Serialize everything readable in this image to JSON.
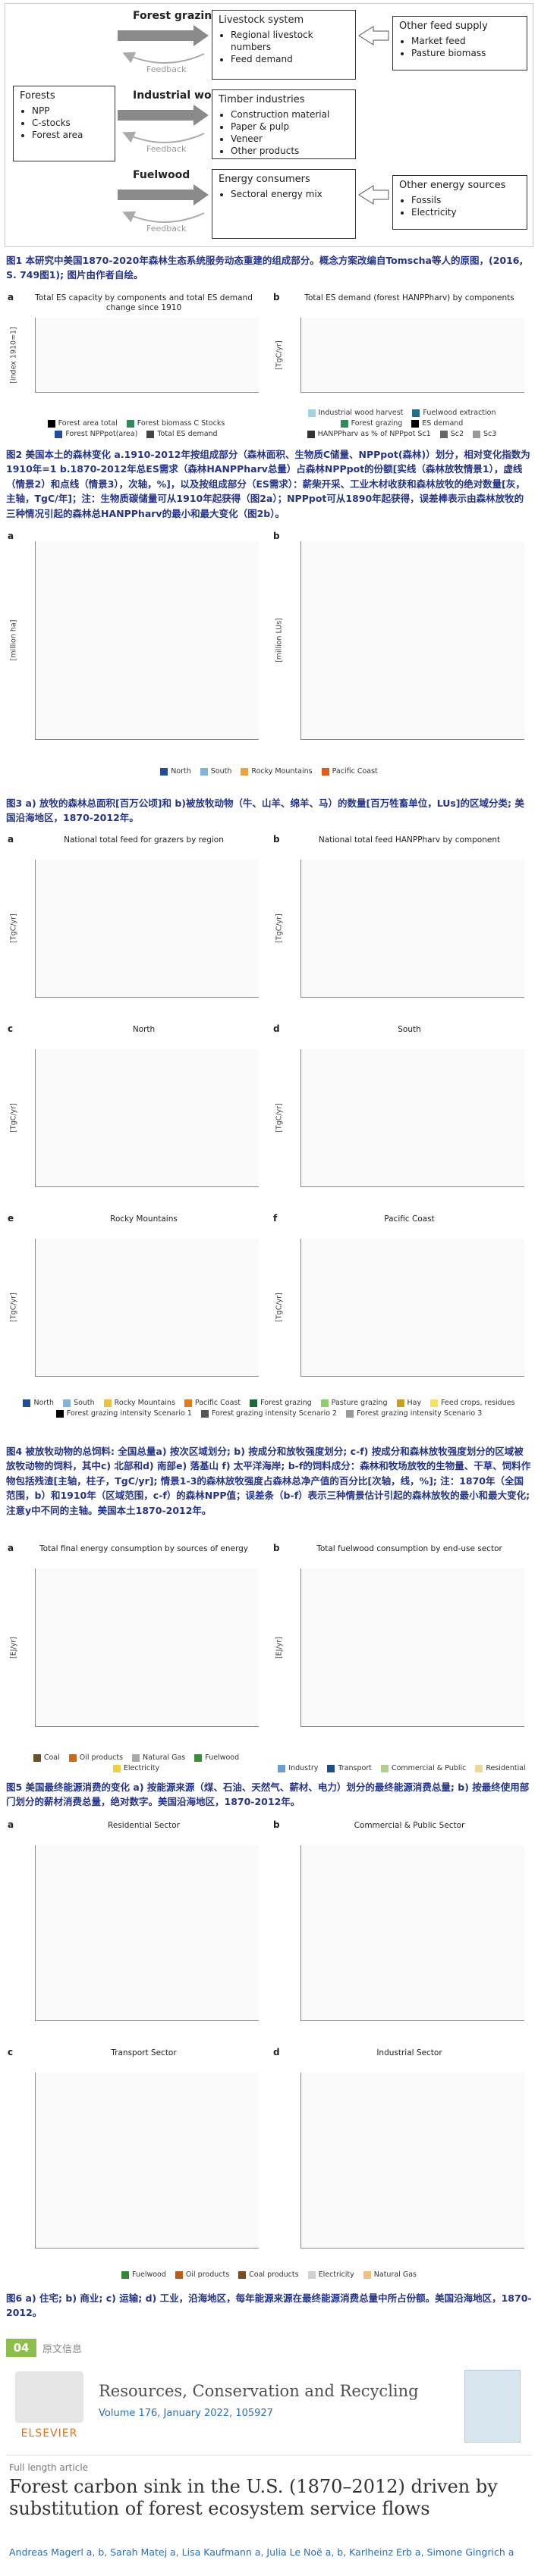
{
  "figure1": {
    "forests": {
      "title": "Forests",
      "items": [
        "NPP",
        "C-stocks",
        "Forest area"
      ]
    },
    "flows": [
      {
        "service": "Forest grazing",
        "feedback": "Feedback",
        "consumer": {
          "title": "Livestock system",
          "items": [
            "Regional livestock numbers",
            "Feed demand"
          ]
        },
        "supply": {
          "title": "Other feed supply",
          "items": [
            "Market feed",
            "Pasture biomass"
          ]
        }
      },
      {
        "service": "Industrial wood",
        "feedback": "Feedback",
        "consumer": {
          "title": "Timber industries",
          "items": [
            "Construction material",
            "Paper & pulp",
            "Veneer",
            "Other products"
          ]
        }
      },
      {
        "service": "Fuelwood",
        "feedback": "Feedback",
        "consumer": {
          "title": "Energy consumers",
          "items": [
            "Sectoral energy mix"
          ]
        },
        "supply": {
          "title": "Other energy sources",
          "items": [
            "Fossils",
            "Electricity"
          ]
        }
      }
    ],
    "caption": "图1 本研究中美国1870-2020年森林生态系统服务动态重建的组成部分。概念方案改编自Tomscha等人的原图，(2016, S. 749图1); 图片由作者自绘。"
  },
  "figures": [
    {
      "panels": [
        {
          "letter": "a",
          "title": "Total ES capacity by components and total ES demand change since 1910",
          "ylabel": "[index 1910=1]",
          "legend": [
            {
              "name": "Forest area total",
              "color": "#000000"
            },
            {
              "name": "Forest biomass C Stocks",
              "color": "#2e8b57"
            },
            {
              "name": "Forest NPPpot(area)",
              "color": "#1f4e9c"
            },
            {
              "name": "Total ES demand",
              "color": "#444444"
            }
          ]
        },
        {
          "letter": "b",
          "title": "Total ES demand (forest HANPPharv) by components",
          "ylabel": "[TgC/yr]",
          "legend": [
            {
              "name": "Industrial wood harvest",
              "color": "#9fd4e0"
            },
            {
              "name": "Fuelwood extraction",
              "color": "#1f6f8b"
            },
            {
              "name": "Forest grazing",
              "color": "#2e8b57"
            },
            {
              "name": "ES demand",
              "color": "#000000"
            },
            {
              "name": "HANPPharv as % of NPPpot Sc1",
              "color": "#333333"
            },
            {
              "name": "Sc2",
              "color": "#666666"
            },
            {
              "name": "Sc3",
              "color": "#999999"
            }
          ]
        }
      ],
      "caption": "图2 美国本土的森林变化 a.1910-2012年按组成部分（森林面积、生物质C储量、NPPpot(森林)）划分，相对变化指数为1910年=1 b.1870-2012年总ES需求（森林HANPPharv总量）占森林NPPpot的份额[实线（森林放牧情景1），虚线（情景2）和点线（情景3），次轴，%]，以及按组成部分（ES需求）：薪柴开采、工业木材收获和森林放牧的绝对数量[灰，主轴，TgC/年]；注：生物质碳储量可从1910年起获得（图2a）；NPPpot可从1890年起获得，误差棒表示由森林放牧的三种情况引起的森林总HANPPharv的最小和最大变化（图2b）。"
    },
    {
      "panels": [
        {
          "letter": "a",
          "ylabel": "[million ha]"
        },
        {
          "letter": "b",
          "ylabel": "[million LUs]"
        }
      ],
      "legend": [
        {
          "name": "North",
          "color": "#1f4e9c"
        },
        {
          "name": "South",
          "color": "#7fb3e0"
        },
        {
          "name": "Rocky Mountains",
          "color": "#f0a040"
        },
        {
          "name": "Pacific Coast",
          "color": "#e05a1a"
        }
      ],
      "caption": "图3 a) 放牧的森林总面积[百万公顷]和 b)被放牧动物（牛、山羊、绵羊、马）的数量[百万牲畜单位，LUs]的区域分类; 美国沿海地区，1870-2012年。"
    },
    {
      "panels": [
        {
          "letter": "a",
          "title": "National total feed for grazers by region",
          "ylabel": "[TgC/yr]"
        },
        {
          "letter": "b",
          "title": "National total feed HANPPharv by component",
          "ylabel": "[TgC/yr]"
        },
        {
          "letter": "c",
          "title": "North",
          "ylabel": "[TgC/yr]"
        },
        {
          "letter": "d",
          "title": "South",
          "ylabel": "[TgC/yr]"
        },
        {
          "letter": "e",
          "title": "Rocky Mountains",
          "ylabel": "[TgC/yr]"
        },
        {
          "letter": "f",
          "title": "Pacific Coast",
          "ylabel": "[TgC/yr]"
        }
      ],
      "legend": [
        {
          "name": "North",
          "color": "#1f4e9c"
        },
        {
          "name": "South",
          "color": "#7fb3e0"
        },
        {
          "name": "Rocky Mountains",
          "color": "#f0c040"
        },
        {
          "name": "Pacific Coast",
          "color": "#e07a1a"
        },
        {
          "name": "Forest grazing",
          "color": "#1a6b3a"
        },
        {
          "name": "Pasture grazing",
          "color": "#8fcf6a"
        },
        {
          "name": "Hay",
          "color": "#c8a020"
        },
        {
          "name": "Feed crops, residues",
          "color": "#f5e060"
        },
        {
          "name": "Forest grazing intensity Scenario 1",
          "color": "#000000"
        },
        {
          "name": "Forest grazing intensity Scenario 2",
          "color": "#555555"
        },
        {
          "name": "Forest grazing intensity Scenario 3",
          "color": "#999999"
        }
      ],
      "caption": "图4 被放牧动物的总饲料: 全国总量a) 按次区域划分; b) 按成分和放牧强度划分; c-f) 按成分和森林放牧强度划分的区域被放牧动物的饲料，其中c) 北部和d) 南部e) 落基山 f) 太平洋海岸; b-f的饲料成分：森林和牧场放牧的生物量、干草、饲料作物包括残渣[主轴，柱子，TgC/yr]; 情景1-3的森林放牧强度占森林总净产值的百分比[次轴，线，%]; 注：1870年（全国范围，b）和1910年（区域范围，c-f）的森林NPP值；误差条（b-f）表示三种情景估计引起的森林放牧的最小和最大变化; 注意y中不同的主轴。美国本土1870-2012年。"
    },
    {
      "panels": [
        {
          "letter": "a",
          "title": "Total final energy consumption by sources of energy",
          "ylabel": "[EJ/yr]",
          "legend": [
            {
              "name": "Coal",
              "color": "#6b4f2a"
            },
            {
              "name": "Oil products",
              "color": "#c86a1a"
            },
            {
              "name": "Natural Gas",
              "color": "#aaaaaa"
            },
            {
              "name": "Fuelwood",
              "color": "#3a8f3a"
            },
            {
              "name": "Electricity",
              "color": "#f0d040"
            }
          ]
        },
        {
          "letter": "b",
          "title": "Total fuelwood consumption by end-use sector",
          "ylabel": "[EJ/yr]",
          "legend": [
            {
              "name": "Industry",
              "color": "#6a9fd4"
            },
            {
              "name": "Transport",
              "color": "#1a4e8a"
            },
            {
              "name": "Commercial & Public",
              "color": "#b0d090"
            },
            {
              "name": "Residential",
              "color": "#f0d898"
            }
          ]
        }
      ],
      "caption": "图5 美国最终能源消费的变化 a) 按能源来源（煤、石油、天然气、薪材、电力）划分的最终能源消费总量; b) 按最终使用部门划分的薪材消费总量，绝对数字。美国沿海地区，1870-2012年。"
    },
    {
      "panels": [
        {
          "letter": "a",
          "title": "Residential Sector"
        },
        {
          "letter": "b",
          "title": "Commercial & Public Sector"
        },
        {
          "letter": "c",
          "title": "Transport Sector"
        },
        {
          "letter": "d",
          "title": "Industrial Sector"
        }
      ],
      "legend": [
        {
          "name": "Fuelwood",
          "color": "#2e8b2e"
        },
        {
          "name": "Oil products",
          "color": "#c05a10"
        },
        {
          "name": "Coal products",
          "color": "#7a4a20"
        },
        {
          "name": "Electricity",
          "color": "#d0d0d0"
        },
        {
          "name": "Natural Gas",
          "color": "#f0c080"
        }
      ],
      "caption": "图6 a) 住宅; b) 商业; c) 运输; d) 工业，沿海地区，每年能源来源在最终能源消费总量中所占份额。美国沿海地区，1870-2012。"
    }
  ],
  "header": {
    "number": "04",
    "section": "原文信息",
    "publisher": "ELSEVIER",
    "journal": "Resources, Conservation and Recycling",
    "volume": "Volume 176, January 2022, 105927"
  },
  "article": {
    "type": "Full length article",
    "title": "Forest carbon sink in the U.S. (1870–2012) driven by substitution of forest ecosystem service flows",
    "authors": "Andreas Magerl a, b, Sarah Matej a, Lisa Kaufmann a, Julia Le Noë a, b, Karlheinz Erb a, Simone Gingrich a"
  }
}
